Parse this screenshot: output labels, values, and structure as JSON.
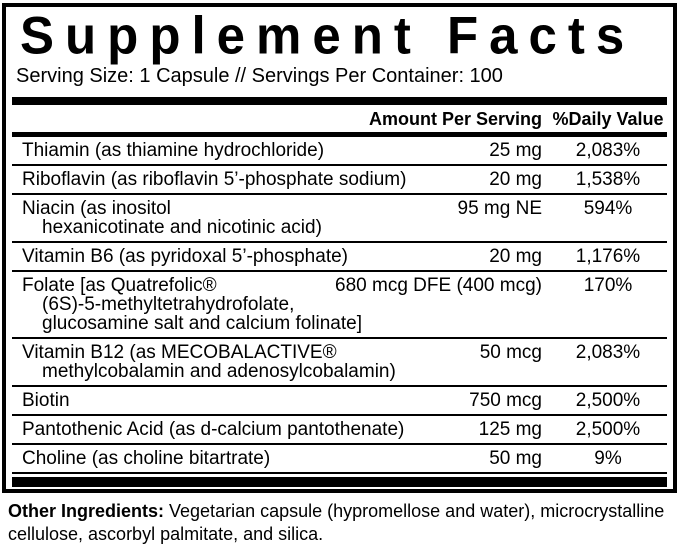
{
  "title": "Supplement Facts",
  "serving_info": "Serving Size: 1 Capsule // Servings Per Container: 100",
  "columns": {
    "amount": "Amount Per Serving",
    "daily_value": "%Daily Value"
  },
  "nutrients": [
    {
      "name": "Thiamin (as thiamine hydrochloride)",
      "amount": "25 mg",
      "dv": "2,083%"
    },
    {
      "name": "Riboflavin (as riboflavin 5’-phosphate sodium)",
      "amount": "20 mg",
      "dv": "1,538%"
    },
    {
      "name": "Niacin (as inositol\nhexanicotinate and nicotinic acid)",
      "amount": "95 mg NE",
      "dv": "594%"
    },
    {
      "name": "Vitamin B6 (as pyridoxal 5’-phosphate)",
      "amount": "20 mg",
      "dv": "1,176%"
    },
    {
      "name": "Folate [as Quatrefolic®\n(6S)-5-methyltetrahydrofolate,\nglucosamine salt and calcium folinate]",
      "amount": "680 mcg DFE (400 mcg)",
      "dv": "170%"
    },
    {
      "name": "Vitamin B12 (as MECOBALACTIVE®\nmethylcobalamin and adenosylcobalamin)",
      "amount": "50 mcg",
      "dv": "2,083%"
    },
    {
      "name": "Biotin",
      "amount": "750 mcg",
      "dv": "2,500%"
    },
    {
      "name": "Pantothenic Acid (as d-calcium pantothenate)",
      "amount": "125 mg",
      "dv": "2,500%"
    },
    {
      "name": "Choline (as choline bitartrate)",
      "amount": "50 mg",
      "dv": "9%"
    }
  ],
  "other_ingredients": {
    "label": "Other Ingredients:",
    "text": " Vegetarian capsule (hypromellose and water), microcrystalline cellulose, ascorbyl palmitate, and silica."
  },
  "colors": {
    "ink": "#000000",
    "background": "#ffffff"
  }
}
